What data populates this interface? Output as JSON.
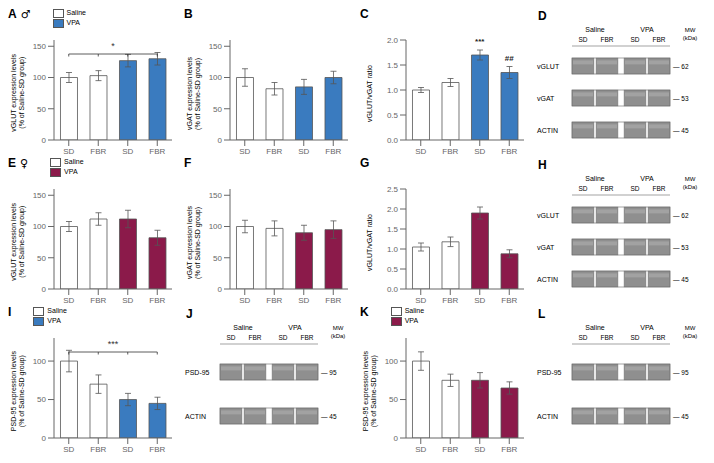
{
  "chart_data": [
    {
      "type": "bar",
      "title": "A",
      "subtitle": "♂",
      "y_label": "vGLUT expression levels\n(% of Saline-SD group)",
      "categories": [
        "SD",
        "FBR",
        "SD",
        "FBR"
      ],
      "series": [
        {
          "name": "Saline",
          "color": "white",
          "values": [
            100,
            103,
            null,
            null
          ],
          "errors": [
            8,
            8,
            null,
            null
          ]
        },
        {
          "name": "VPA",
          "color": "#3a7bbf",
          "values": [
            null,
            null,
            127,
            130
          ],
          "errors": [
            null,
            null,
            10,
            10
          ]
        }
      ],
      "ylim": [
        0,
        160
      ],
      "yticks": [
        0,
        50,
        100,
        150
      ],
      "legend": "upper left",
      "bracket_label": "*"
    },
    {
      "type": "bar",
      "title": "B",
      "y_label": "vGAT expression levels\n(% of Saline-SD group)",
      "categories": [
        "SD",
        "FBR",
        "SD",
        "FBR"
      ],
      "values": [
        100,
        82,
        85,
        100
      ],
      "errors": [
        14,
        10,
        12,
        10
      ],
      "colors": [
        "white",
        "white",
        "#3a7bbf",
        "#3a7bbf"
      ],
      "ylim": [
        0,
        160
      ],
      "yticks": [
        0,
        50,
        100,
        150
      ]
    },
    {
      "type": "bar",
      "title": "C",
      "y_label": "vGLUT/vGAT ratio",
      "categories": [
        "SD",
        "FBR",
        "SD",
        "FBR"
      ],
      "values": [
        1.0,
        1.15,
        1.7,
        1.35
      ],
      "errors": [
        0.05,
        0.08,
        0.1,
        0.12
      ],
      "colors": [
        "white",
        "white",
        "#3a7bbf",
        "#3a7bbf"
      ],
      "ylim": [
        0.0,
        2.0
      ],
      "yticks": [
        {
          "value": 0,
          "label": "0.0"
        },
        0.5,
        {
          "value": 1,
          "label": "1.0"
        },
        1.5,
        {
          "value": 2,
          "label": "2.0"
        }
      ],
      "sig_labels": [
        null,
        null,
        "***",
        "##"
      ]
    },
    {
      "type": "blot",
      "title": "D",
      "groups": [
        "Saline",
        "VPA"
      ],
      "lanes": [
        "SD",
        "FBR",
        "SD",
        "FBR"
      ],
      "mw_label": "MW\n(kDa)",
      "rows": [
        {
          "name": "vGLUT",
          "mw": "— 62"
        },
        {
          "name": "vGAT",
          "mw": "— 53"
        },
        {
          "name": "ACTIN",
          "mw": "— 45"
        }
      ]
    },
    {
      "type": "bar",
      "title": "E",
      "subtitle": "♀",
      "y_label": "vGLUT expression levels\n(% of Saline-SD group)",
      "categories": [
        "SD",
        "FBR",
        "SD",
        "FBR"
      ],
      "series": [
        {
          "name": "Saline",
          "color": "white",
          "values": [
            100,
            112,
            null,
            null
          ],
          "errors": [
            8,
            10,
            null,
            null
          ]
        },
        {
          "name": "VPA",
          "color": "#8b1a4a",
          "values": [
            null,
            null,
            112,
            82
          ],
          "errors": [
            null,
            null,
            14,
            12
          ]
        }
      ],
      "ylim": [
        0,
        160
      ],
      "yticks": [
        0,
        50,
        100,
        150
      ],
      "legend": "upper left"
    },
    {
      "type": "bar",
      "title": "F",
      "y_label": "vGAT expression levels\n(% of Saline-SD group)",
      "categories": [
        "SD",
        "FBR",
        "SD",
        "FBR"
      ],
      "values": [
        100,
        97,
        90,
        95
      ],
      "errors": [
        10,
        12,
        12,
        14
      ],
      "colors": [
        "white",
        "white",
        "#8b1a4a",
        "#8b1a4a"
      ],
      "ylim": [
        0,
        160
      ],
      "yticks": [
        0,
        50,
        100,
        150
      ]
    },
    {
      "type": "bar",
      "title": "G",
      "y_label": "vGLUT/vGAT ratio",
      "categories": [
        "SD",
        "FBR",
        "SD",
        "FBR"
      ],
      "values": [
        1.05,
        1.18,
        1.9,
        0.88
      ],
      "errors": [
        0.1,
        0.12,
        0.15,
        0.1
      ],
      "colors": [
        "white",
        "white",
        "#8b1a4a",
        "#8b1a4a"
      ],
      "ylim": [
        0.0,
        2.5
      ],
      "yticks": [
        {
          "value": 0,
          "label": "0.0"
        },
        0.5,
        {
          "value": 1,
          "label": "1.0"
        },
        1.5,
        {
          "value": 2,
          "label": "2.0"
        },
        2.5
      ]
    },
    {
      "type": "blot",
      "title": "H",
      "groups": [
        "Saline",
        "VPA"
      ],
      "lanes": [
        "SD",
        "FBR",
        "SD",
        "FBR"
      ],
      "mw_label": "MW\n(kDa)",
      "rows": [
        {
          "name": "vGLUT",
          "mw": "— 62"
        },
        {
          "name": "vGAT",
          "mw": "— 53"
        },
        {
          "name": "ACTIN",
          "mw": "— 45"
        }
      ]
    },
    {
      "type": "bar",
      "title": "I",
      "y_label": "PSD-95 expression levels\n(% of Saline-SD group)",
      "categories": [
        "SD",
        "FBR",
        "SD",
        "FBR"
      ],
      "series": [
        {
          "name": "Saline",
          "color": "white",
          "values": [
            100,
            70,
            null,
            null
          ],
          "errors": [
            14,
            12,
            null,
            null
          ]
        },
        {
          "name": "VPA",
          "color": "#3a7bbf",
          "values": [
            null,
            null,
            50,
            45
          ],
          "errors": [
            null,
            null,
            8,
            8
          ]
        }
      ],
      "ylim": [
        0,
        130
      ],
      "yticks": [
        0,
        50,
        100
      ],
      "legend": "upper left",
      "bracket_label": "***"
    },
    {
      "type": "blot",
      "title": "J",
      "groups": [
        "Saline",
        "VPA"
      ],
      "lanes": [
        "SD",
        "FBR",
        "SD",
        "FBR"
      ],
      "mw_label": "MW\n(kDa)",
      "rows": [
        {
          "name": "PSD-95",
          "mw": "— 95"
        },
        {
          "name": "ACTIN",
          "mw": "— 45"
        }
      ]
    },
    {
      "type": "bar",
      "title": "K",
      "y_label": "PSD-95 expression levels\n(% of Saline-SD group)",
      "categories": [
        "SD",
        "FBR",
        "SD",
        "FBR"
      ],
      "series": [
        {
          "name": "Saline",
          "color": "white",
          "values": [
            100,
            75,
            null,
            null
          ],
          "errors": [
            12,
            8,
            null,
            null
          ]
        },
        {
          "name": "VPA",
          "color": "#8b1a4a",
          "values": [
            null,
            null,
            75,
            65
          ],
          "errors": [
            null,
            null,
            10,
            8
          ]
        }
      ],
      "ylim": [
        0,
        130
      ],
      "yticks": [
        0,
        50,
        100
      ],
      "legend": "upper left"
    },
    {
      "type": "blot",
      "title": "L",
      "groups": [
        "Saline",
        "VPA"
      ],
      "lanes": [
        "SD",
        "FBR",
        "SD",
        "FBR"
      ],
      "mw_label": "MW\n(kDa)",
      "rows": [
        {
          "name": "PSD-95",
          "mw": "— 95"
        },
        {
          "name": "ACTIN",
          "mw": "— 45"
        }
      ]
    }
  ]
}
